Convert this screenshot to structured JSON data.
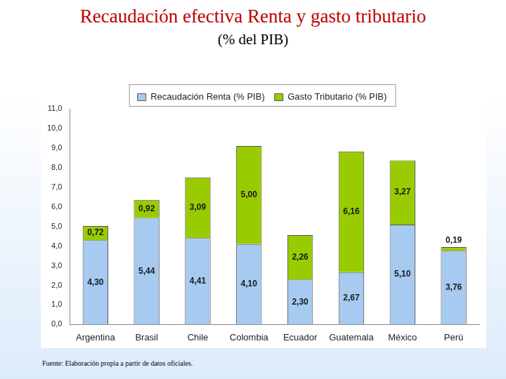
{
  "chart_data": {
    "type": "bar",
    "title": "Recaudación efectiva Renta y gasto tributario",
    "subtitle": "(% del PIB)",
    "annotations": [
      "Fuente: Elaboración propia a partir de datos oficiales."
    ],
    "categories": [
      "Argentina",
      "Brasil",
      "Chile",
      "Colombia",
      "Ecuador",
      "Guatemala",
      "México",
      "Perú"
    ],
    "series": [
      {
        "name": "Recaudación Renta (% PIB)",
        "color": "#a6caf0",
        "values": [
          4.3,
          5.44,
          4.41,
          4.1,
          2.3,
          2.67,
          5.1,
          3.76
        ],
        "value_labels": [
          "4,30",
          "5,44",
          "4,41",
          "4,10",
          "2,30",
          "2,67",
          "5,10",
          "3,76"
        ]
      },
      {
        "name": "Gasto Tributario (% PIB)",
        "color": "#99cc00",
        "values": [
          0.72,
          0.92,
          3.09,
          5.0,
          2.26,
          6.16,
          3.27,
          0.19
        ],
        "value_labels": [
          "0,72",
          "0,92",
          "3,09",
          "5,00",
          "2,26",
          "6,16",
          "3,27",
          "0,19"
        ]
      }
    ],
    "ylim": [
      0,
      11
    ],
    "yticks": [
      {
        "value": 0,
        "label": "0,0"
      },
      {
        "value": 1,
        "label": "1,0"
      },
      {
        "value": 2,
        "label": "2,0"
      },
      {
        "value": 3,
        "label": "3,0"
      },
      {
        "value": 4,
        "label": "4,0"
      },
      {
        "value": 5,
        "label": "5,0"
      },
      {
        "value": 6,
        "label": "6,0"
      },
      {
        "value": 7,
        "label": "7,0"
      },
      {
        "value": 8,
        "label": "8,0"
      },
      {
        "value": 9,
        "label": "9,0"
      },
      {
        "value": 10,
        "label": "10,0"
      },
      {
        "value": 11,
        "label": "11,0"
      }
    ],
    "stacked": true,
    "data_labels": true,
    "legend": "top",
    "grid": false
  }
}
